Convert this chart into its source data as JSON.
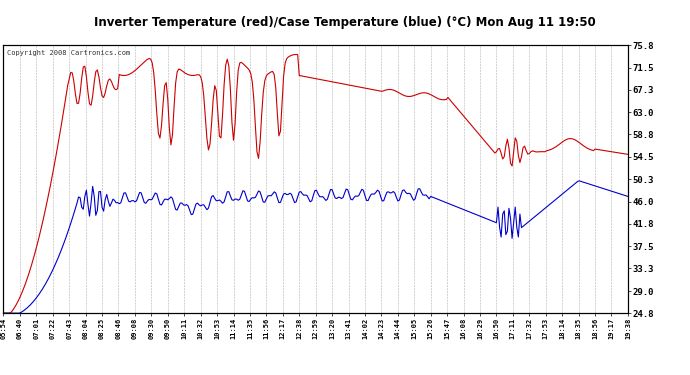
{
  "title": "Inverter Temperature (red)/Case Temperature (blue) (°C) Mon Aug 11 19:50",
  "copyright": "Copyright 2008 Cartronics.com",
  "bg_color": "#ffffff",
  "plot_bg_color": "#ffffff",
  "grid_color": "#b0b0b0",
  "red_color": "#cc0000",
  "blue_color": "#0000cc",
  "ylim_min": 24.8,
  "ylim_max": 75.8,
  "yticks": [
    24.8,
    29.0,
    33.3,
    37.5,
    41.8,
    46.0,
    50.3,
    54.5,
    58.8,
    63.0,
    67.3,
    71.5,
    75.8
  ],
  "xtick_labels": [
    "05:54",
    "06:40",
    "07:01",
    "07:22",
    "07:43",
    "08:04",
    "08:25",
    "08:46",
    "09:08",
    "09:30",
    "09:50",
    "10:11",
    "10:32",
    "10:53",
    "11:14",
    "11:35",
    "11:56",
    "12:17",
    "12:38",
    "12:59",
    "13:20",
    "13:41",
    "14:02",
    "14:23",
    "14:44",
    "15:05",
    "15:26",
    "15:47",
    "16:08",
    "16:29",
    "16:50",
    "17:11",
    "17:32",
    "17:53",
    "18:14",
    "18:35",
    "18:56",
    "19:17",
    "19:38"
  ]
}
